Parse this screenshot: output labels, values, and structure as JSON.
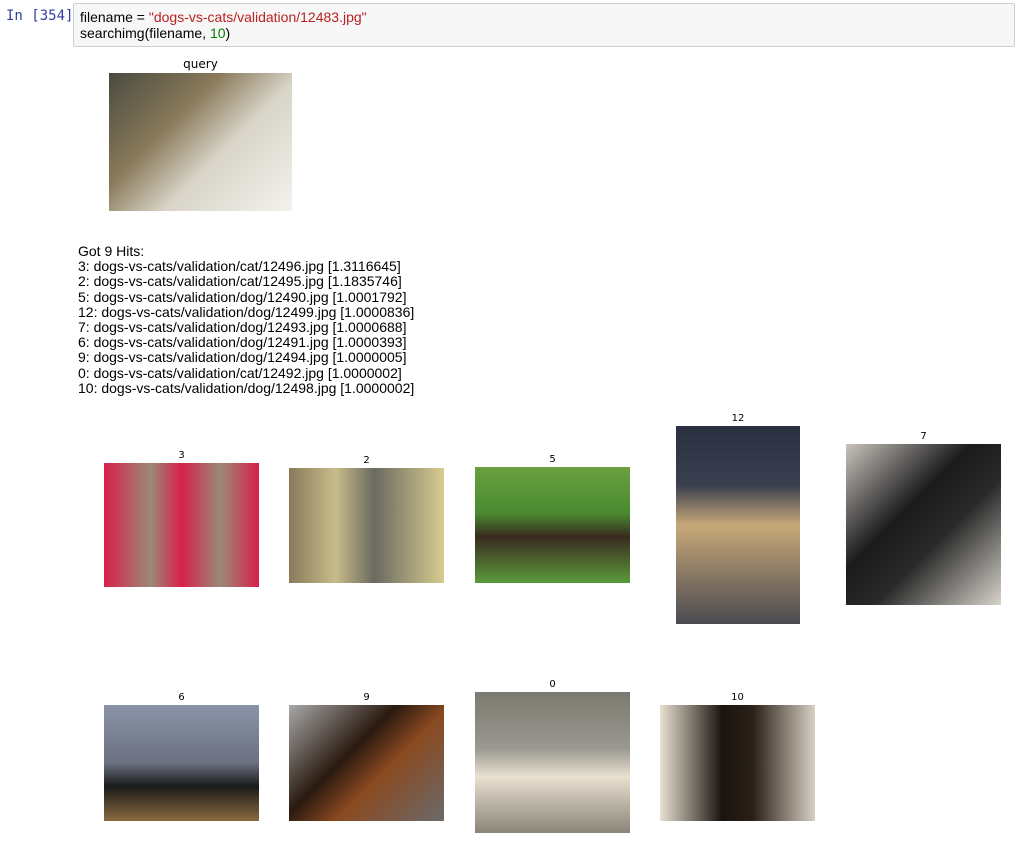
{
  "cell": {
    "prompt": "In [354]:",
    "code": [
      [
        "filename = ",
        "\"dogs-vs-cats/validation/12483.jpg\""
      ],
      [
        "searchimg(filename, ",
        "10",
        ")"
      ]
    ]
  },
  "query": {
    "title": "query"
  },
  "output": {
    "lines": [
      "Got 9 Hits:",
      "3: dogs-vs-cats/validation/cat/12496.jpg [1.3116645]",
      "2: dogs-vs-cats/validation/cat/12495.jpg [1.1835746]",
      "5: dogs-vs-cats/validation/dog/12490.jpg [1.0001792]",
      "12: dogs-vs-cats/validation/dog/12499.jpg [1.0000836]",
      "7: dogs-vs-cats/validation/dog/12493.jpg [1.0000688]",
      "6: dogs-vs-cats/validation/dog/12491.jpg [1.0000393]",
      "9: dogs-vs-cats/validation/dog/12494.jpg [1.0000005]",
      "0: dogs-vs-cats/validation/cat/12492.jpg [1.0000002]",
      "10: dogs-vs-cats/validation/dog/12498.jpg [1.0000002]"
    ]
  },
  "results": [
    {
      "title": "3"
    },
    {
      "title": "2"
    },
    {
      "title": "5"
    },
    {
      "title": "12"
    },
    {
      "title": "7"
    },
    {
      "title": "6"
    },
    {
      "title": "9"
    },
    {
      "title": "0"
    },
    {
      "title": "10"
    }
  ]
}
